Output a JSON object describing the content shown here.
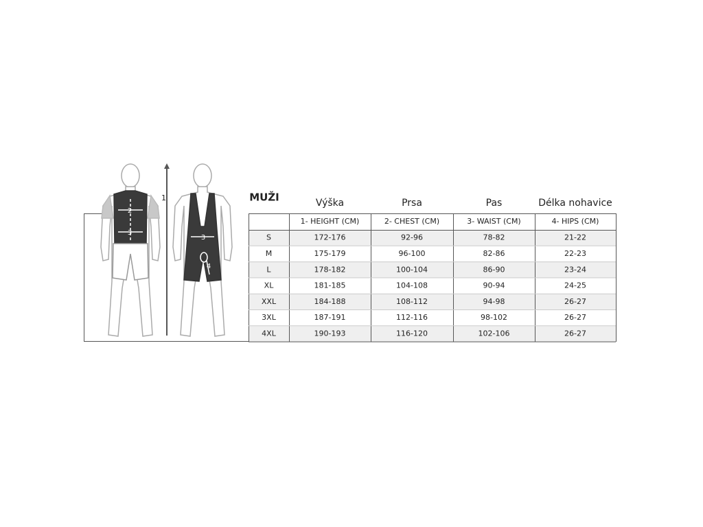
{
  "title": "MUŽI",
  "figure": {
    "labels": [
      "1",
      "2",
      "3",
      "3",
      "4"
    ]
  },
  "table": {
    "headers": [
      "Výška",
      "Prsa",
      "Pas",
      "Délka nohavice"
    ],
    "subheaders": [
      "1- HEIGHT (CM)",
      "2- CHEST (CM)",
      "3- WAIST (CM)",
      "4- HIPS (CM)"
    ],
    "rows": [
      [
        "S",
        "172-176",
        "92-96",
        "78-82",
        "21-22"
      ],
      [
        "M",
        "175-179",
        "96-100",
        "82-86",
        "22-23"
      ],
      [
        "L",
        "178-182",
        "100-104",
        "86-90",
        "23-24"
      ],
      [
        "XL",
        "181-185",
        "104-108",
        "90-94",
        "24-25"
      ],
      [
        "XXL",
        "184-188",
        "108-112",
        "94-98",
        "26-27"
      ],
      [
        "3XL",
        "187-191",
        "112-116",
        "98-102",
        "26-27"
      ],
      [
        "4XL",
        "190-193",
        "116-120",
        "102-106",
        "26-27"
      ]
    ]
  }
}
